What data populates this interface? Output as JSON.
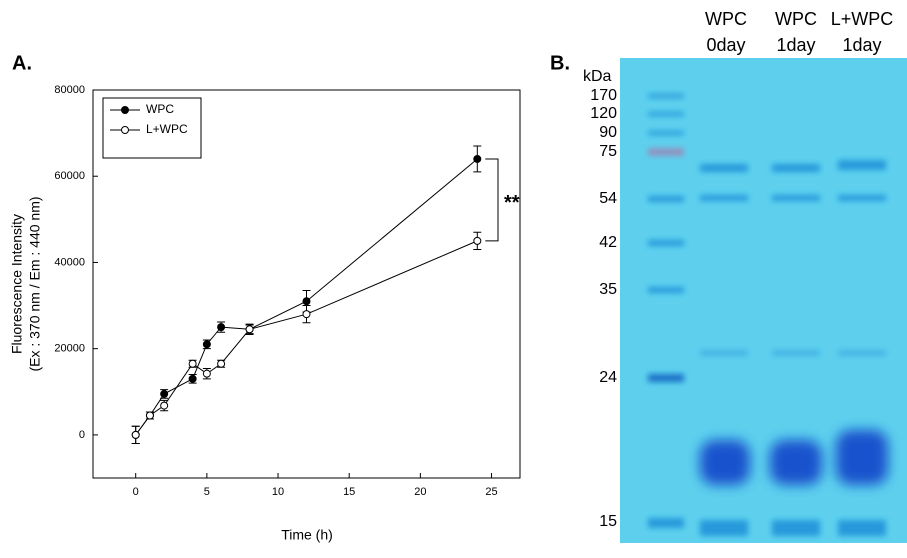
{
  "chart_data": {
    "type": "line",
    "panel_label": "A.",
    "xlabel": "Time (h)",
    "ylabel": "Fluorescence Intensity",
    "ylabel_sub": "(Ex : 370 nm / Em : 440 nm)",
    "x": [
      0,
      1,
      2,
      4,
      5,
      6,
      8,
      12,
      24
    ],
    "series": [
      {
        "name": "WPC",
        "color": "#000000",
        "marker": "filled",
        "values": [
          0,
          4500,
          9500,
          13000,
          21000,
          25000,
          24500,
          31000,
          64000
        ],
        "errors": [
          2000,
          800,
          1000,
          1000,
          1000,
          1200,
          1000,
          2500,
          3000
        ]
      },
      {
        "name": "L+WPC",
        "color": "#000000",
        "marker": "open",
        "values": [
          0,
          4500,
          6800,
          16500,
          14200,
          16500,
          24500,
          28000,
          45000
        ],
        "errors": [
          2000,
          800,
          1200,
          800,
          1200,
          800,
          1200,
          2000,
          2000
        ]
      }
    ],
    "xlim": [
      -3,
      27
    ],
    "ylim": [
      -10000,
      80000
    ],
    "xticks": [
      0,
      5,
      10,
      15,
      20,
      25
    ],
    "yticks": [
      0,
      20000,
      40000,
      60000,
      80000
    ],
    "legend": "upper left",
    "annotation": "**"
  },
  "gel": {
    "panel_label": "B.",
    "unit": "kDa",
    "markers": [
      "170",
      "120",
      "90",
      "75",
      "54",
      "42",
      "35",
      "24",
      "15"
    ],
    "lanes": [
      {
        "name": "WPC",
        "day": "0day"
      },
      {
        "name": "WPC",
        "day": "1day"
      },
      {
        "name": "L+WPC",
        "day": "1day"
      }
    ]
  }
}
